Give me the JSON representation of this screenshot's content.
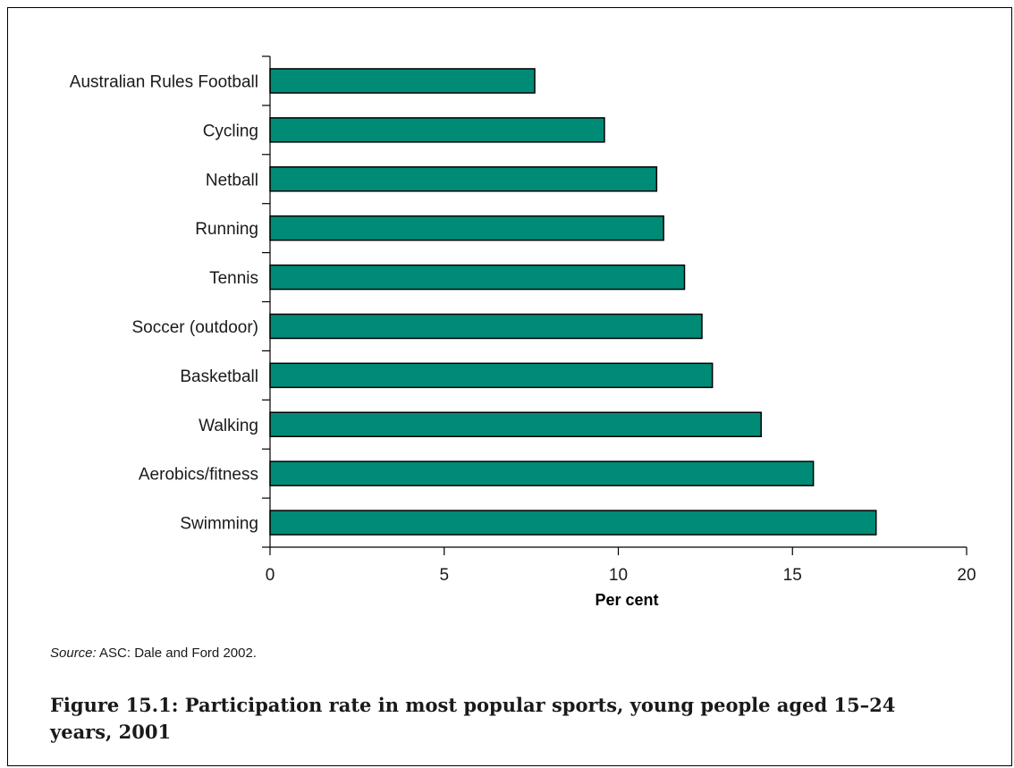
{
  "chart_data": {
    "type": "bar",
    "orientation": "horizontal",
    "categories": [
      "Australian Rules Football",
      "Cycling",
      "Netball",
      "Running",
      "Tennis",
      "Soccer (outdoor)",
      "Basketball",
      "Walking",
      "Aerobics/fitness",
      "Swimming"
    ],
    "values": [
      7.6,
      9.6,
      11.1,
      11.3,
      11.9,
      12.4,
      12.7,
      14.1,
      15.6,
      17.4
    ],
    "xlabel": "Per cent",
    "ylabel": "",
    "xlim": [
      0,
      20
    ],
    "xticks": [
      0,
      5,
      10,
      15,
      20
    ],
    "bar_color": "#008b77",
    "grid": false,
    "legend": "none"
  },
  "source": {
    "label": "Source:",
    "text": " ASC: Dale and Ford 2002."
  },
  "caption": "Figure 15.1: Participation rate in most popular sports, young people aged 15–24 years, 2001"
}
